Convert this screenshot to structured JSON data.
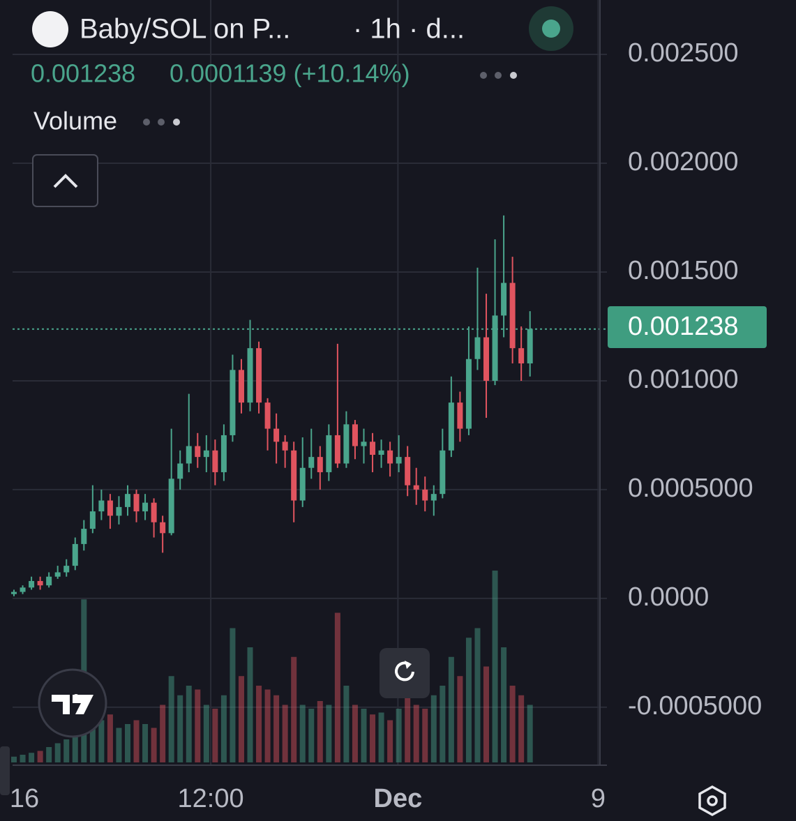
{
  "chart_data": {
    "type": "candlestick",
    "title": "Baby/SOL on P...",
    "interval": "· 1h · d...",
    "last_price": 0.001238,
    "change": "0.0001139 (+10.14%)",
    "volume_label": "Volume",
    "up_color": "#4aa58c",
    "down_color": "#e0545f",
    "grid": true,
    "ylim": [
      -0.00076,
      0.00275
    ],
    "yticks": [
      {
        "value": 0.0025,
        "label": "0.002500"
      },
      {
        "value": 0.002,
        "label": "0.002000"
      },
      {
        "value": 0.0015,
        "label": "0.001500"
      },
      {
        "value": 0.001,
        "label": "0.001000"
      },
      {
        "value": 0.0005,
        "label": "0.0005000"
      },
      {
        "value": 0,
        "label": "0.0000"
      },
      {
        "value": -0.0005,
        "label": "-0.0005000"
      }
    ],
    "xlim": [
      -0.16,
      67
    ],
    "xticks": [
      {
        "value": 1.2,
        "label": "16"
      },
      {
        "value": 22.5,
        "label": "12:00"
      },
      {
        "value": 43.9,
        "label": "Dec"
      },
      {
        "value": 66.8,
        "label": "9"
      }
    ],
    "open": [
      2e-05,
      3e-05,
      5e-05,
      8e-05,
      6e-05,
      0.0001,
      0.00012,
      0.00015,
      0.00025,
      0.00032,
      0.0004,
      0.00045,
      0.00038,
      0.00042,
      0.00048,
      0.0004,
      0.00044,
      0.00035,
      0.0003,
      0.00055,
      0.00062,
      0.0007,
      0.00065,
      0.00068,
      0.00058,
      0.00075,
      0.00105,
      0.0009,
      0.00115,
      0.0009,
      0.00078,
      0.00072,
      0.00068,
      0.00045,
      0.0006,
      0.00065,
      0.00058,
      0.00075,
      0.00062,
      0.0008,
      0.0007,
      0.00072,
      0.00066,
      0.00068,
      0.00062,
      0.00065,
      0.00052,
      0.0005,
      0.00045,
      0.00048,
      0.00068,
      0.0009,
      0.00078,
      0.0011,
      0.0012,
      0.001,
      0.0013,
      0.00145,
      0.00115,
      0.00108
    ],
    "high": [
      4e-05,
      6e-05,
      0.0001,
      0.0001,
      0.00012,
      0.00015,
      0.00018,
      0.00028,
      0.00036,
      0.00052,
      0.0005,
      0.00048,
      0.00047,
      0.00052,
      0.0005,
      0.00048,
      0.00046,
      0.00038,
      0.00078,
      0.00068,
      0.00094,
      0.00076,
      0.00075,
      0.00073,
      0.0008,
      0.00112,
      0.0011,
      0.00128,
      0.00118,
      0.00092,
      0.00085,
      0.00075,
      0.00072,
      0.00074,
      0.00078,
      0.0007,
      0.0008,
      0.00117,
      0.00086,
      0.00082,
      0.00078,
      0.00076,
      0.00073,
      0.00072,
      0.00075,
      0.0007,
      0.0006,
      0.00056,
      0.00052,
      0.00078,
      0.00102,
      0.00095,
      0.00125,
      0.00152,
      0.0014,
      0.00165,
      0.00176,
      0.00157,
      0.00125,
      0.00132
    ],
    "low": [
      1e-05,
      2e-05,
      4e-05,
      4e-05,
      5e-05,
      9e-05,
      0.0001,
      0.00013,
      0.00022,
      0.0003,
      0.00036,
      0.00032,
      0.00034,
      0.00038,
      0.00035,
      0.00036,
      0.00028,
      0.00021,
      0.00029,
      0.0005,
      0.00058,
      0.0006,
      0.00058,
      0.00052,
      0.00054,
      0.00072,
      0.00085,
      0.00086,
      0.00085,
      0.00068,
      0.00062,
      0.0006,
      0.00035,
      0.00042,
      0.00055,
      0.0005,
      0.00054,
      0.0006,
      0.0006,
      0.00064,
      0.00062,
      0.00058,
      0.0006,
      0.00056,
      0.00058,
      0.00047,
      0.00043,
      0.0004,
      0.00038,
      0.00046,
      0.00065,
      0.00072,
      0.00075,
      0.00105,
      0.00083,
      0.00098,
      0.0012,
      0.00108,
      0.001,
      0.00102
    ],
    "close": [
      3e-05,
      5e-05,
      8e-05,
      6e-05,
      0.0001,
      0.00012,
      0.00015,
      0.00025,
      0.00032,
      0.0004,
      0.00045,
      0.00038,
      0.00042,
      0.00048,
      0.0004,
      0.00044,
      0.00035,
      0.0003,
      0.00055,
      0.00062,
      0.0007,
      0.00065,
      0.00068,
      0.00058,
      0.00075,
      0.00105,
      0.0009,
      0.00115,
      0.0009,
      0.00078,
      0.00072,
      0.00068,
      0.00045,
      0.0006,
      0.00065,
      0.00058,
      0.00075,
      0.00062,
      0.0008,
      0.0007,
      0.00072,
      0.00066,
      0.00068,
      0.00062,
      0.00065,
      0.00052,
      0.0005,
      0.00045,
      0.00048,
      0.00068,
      0.0009,
      0.00078,
      0.0011,
      0.0012,
      0.001,
      0.0013,
      0.00145,
      0.00115,
      0.00108,
      0.001238
    ],
    "volume": [
      3,
      4,
      5,
      6,
      8,
      10,
      12,
      18,
      85,
      20,
      22,
      25,
      18,
      20,
      22,
      20,
      18,
      30,
      45,
      35,
      40,
      38,
      30,
      28,
      35,
      70,
      45,
      60,
      40,
      38,
      35,
      30,
      55,
      30,
      28,
      32,
      30,
      78,
      40,
      30,
      28,
      25,
      26,
      22,
      28,
      35,
      30,
      28,
      35,
      40,
      55,
      45,
      65,
      70,
      50,
      100,
      60,
      40,
      35,
      30
    ]
  }
}
